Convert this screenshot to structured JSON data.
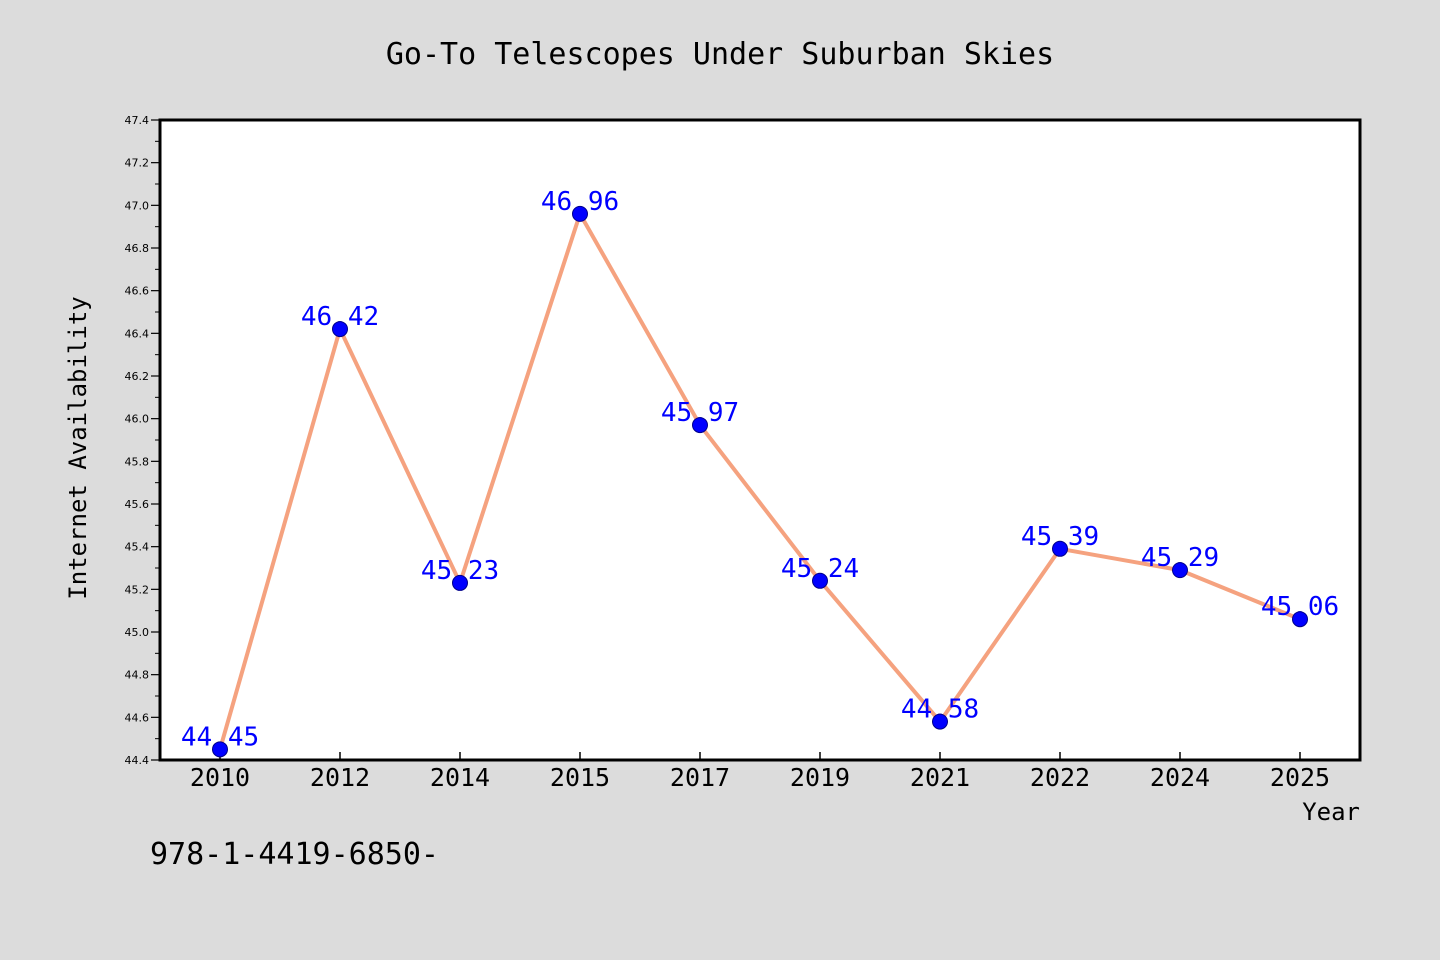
{
  "chart_data": {
    "type": "line",
    "title": "Go-To Telescopes Under Suburban Skies",
    "xlabel": "Year",
    "ylabel": "Internet Availability",
    "categories": [
      "2010",
      "2012",
      "2014",
      "2015",
      "2017",
      "2019",
      "2021",
      "2022",
      "2024",
      "2025"
    ],
    "values": [
      44.45,
      46.42,
      45.23,
      46.96,
      45.97,
      45.24,
      44.58,
      45.39,
      45.29,
      45.06
    ],
    "ylim": [
      44.4,
      47.4
    ],
    "yticks": [
      "44.4",
      "44.6",
      "44.8",
      "45.0",
      "45.2",
      "45.4",
      "45.6",
      "45.8",
      "46.0",
      "46.2",
      "46.4",
      "46.6",
      "46.8",
      "47.0",
      "47.2",
      "47.4"
    ],
    "grid": false,
    "colors": {
      "line": "#f5a27f",
      "marker": "#0000ff",
      "marker_edge": "#00008b",
      "data_label": "#0000ff"
    }
  },
  "note": "978-1-4419-6850-",
  "colors": {
    "page_background": "#dcdcdc",
    "plot_background": "#ffffff",
    "axis": "#000000"
  }
}
